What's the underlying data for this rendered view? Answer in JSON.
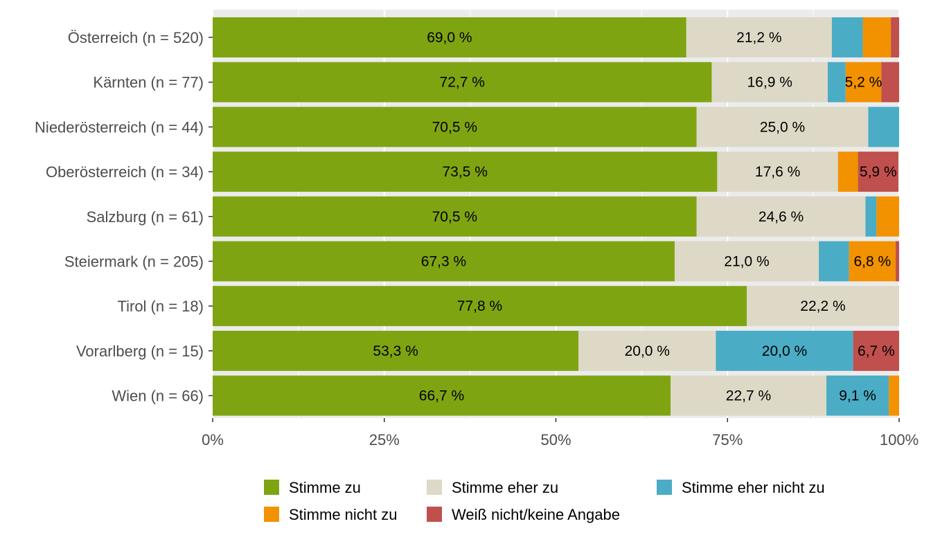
{
  "chart_data": {
    "type": "bar",
    "orientation": "horizontal",
    "stacked": true,
    "title": "",
    "xlabel": "",
    "ylabel": "",
    "xlim": [
      0,
      100
    ],
    "x_ticks": [
      "0%",
      "25%",
      "50%",
      "75%",
      "100%"
    ],
    "x_tick_values": [
      0,
      25,
      50,
      75,
      100
    ],
    "grid": true,
    "legend_position": "bottom",
    "categories": [
      "Österreich (n = 520)",
      "Kärnten (n = 77)",
      "Niederösterreich (n = 44)",
      "Oberösterreich (n = 34)",
      "Salzburg (n = 61)",
      "Steiermark (n = 205)",
      "Tirol (n = 18)",
      "Vorarlberg (n = 15)",
      "Wien (n = 66)"
    ],
    "series": [
      {
        "name": "Stimme zu",
        "color": "#7fa412",
        "values": [
          69.0,
          72.7,
          70.5,
          73.5,
          70.5,
          67.3,
          77.8,
          53.3,
          66.7
        ],
        "labels": [
          "69,0 %",
          "72,7 %",
          "70,5 %",
          "73,5 %",
          "70,5 %",
          "67,3 %",
          "77,8 %",
          "53,3 %",
          "66,7 %"
        ]
      },
      {
        "name": "Stimme eher zu",
        "color": "#ddd9c6",
        "values": [
          21.2,
          16.9,
          25.0,
          17.6,
          24.6,
          21.0,
          22.2,
          20.0,
          22.7
        ],
        "labels": [
          "21,2 %",
          "16,9 %",
          "25,0 %",
          "17,6 %",
          "24,6 %",
          "21,0 %",
          "22,2 %",
          "20,0 %",
          "22,7 %"
        ]
      },
      {
        "name": "Stimme eher nicht zu",
        "color": "#4bacc6",
        "values": [
          4.5,
          2.6,
          4.5,
          0,
          1.6,
          4.4,
          0,
          20.0,
          9.1
        ],
        "labels": [
          "",
          "",
          "",
          "",
          "",
          "",
          "",
          "20,0 %",
          "9,1 %"
        ]
      },
      {
        "name": "Stimme nicht zu",
        "color": "#f39200",
        "values": [
          4.1,
          5.2,
          0,
          2.9,
          3.3,
          6.8,
          0,
          0,
          1.5
        ],
        "labels": [
          "",
          "5,2 %",
          "",
          "",
          "",
          "6,8 %",
          "",
          "",
          ""
        ]
      },
      {
        "name": "Weiß nicht/keine Angabe",
        "color": "#c0504d",
        "values": [
          1.2,
          2.6,
          0,
          5.9,
          0,
          0.5,
          0,
          6.7,
          0
        ],
        "labels": [
          "",
          "",
          "",
          "5,9 %",
          "",
          "",
          "",
          "6,7 %",
          ""
        ]
      }
    ],
    "legend_order": [
      0,
      1,
      2,
      3,
      4
    ],
    "panel_background": "#ebebeb",
    "grid_color": "#ffffff"
  }
}
